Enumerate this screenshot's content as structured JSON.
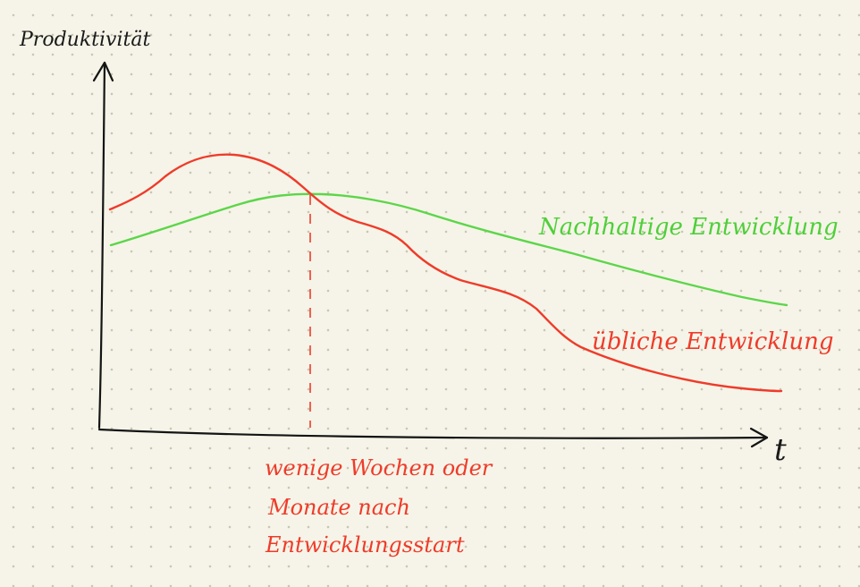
{
  "y_axis_label": "Produktivität",
  "x_axis_label": "t",
  "series": [
    {
      "name": "Nachhaltige Entwicklung",
      "color": "#5cd64a"
    },
    {
      "name": "übliche Entwicklung",
      "color": "#ef3b2a"
    }
  ],
  "annotation": {
    "lines": [
      "wenige Wochen oder",
      "Monate nach",
      "Entwicklungsstart"
    ],
    "color": "#ef3b2a"
  }
}
